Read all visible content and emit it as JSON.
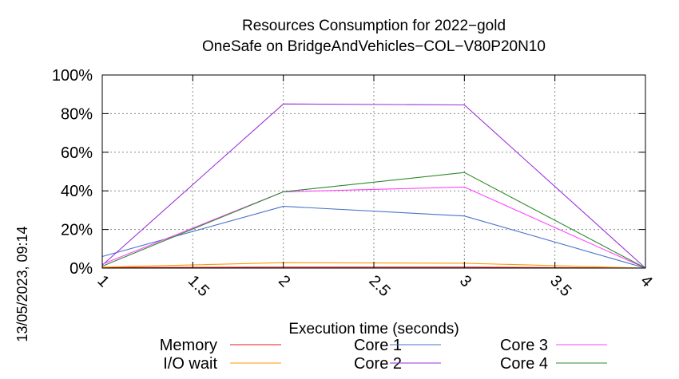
{
  "chart_data": {
    "type": "line",
    "title": "Resources Consumption for 2022−gold",
    "subtitle": "OneSafe on BridgeAndVehicles−COL−V80P20N10",
    "xlabel": "Execution time (seconds)",
    "ylabel": "",
    "xlim": [
      1,
      4
    ],
    "ylim": [
      0,
      100
    ],
    "x_ticks": [
      "1",
      "1.5",
      "2",
      "2.5",
      "3",
      "3.5",
      "4"
    ],
    "y_ticks": [
      "0%",
      "20%",
      "40%",
      "60%",
      "80%",
      "100%"
    ],
    "grid": true,
    "legend_position": "bottom",
    "series": [
      {
        "name": "Memory",
        "color": "#e41a1c",
        "x": [
          1,
          2,
          3,
          4
        ],
        "values": [
          0.3,
          0.5,
          0.5,
          0
        ]
      },
      {
        "name": "I/O wait",
        "color": "#ff9900",
        "x": [
          1,
          2,
          3,
          4
        ],
        "values": [
          0.5,
          2.8,
          2.5,
          0
        ]
      },
      {
        "name": "Core 1",
        "color": "#4a72c9",
        "x": [
          1,
          2,
          3,
          4
        ],
        "values": [
          6,
          32,
          27,
          0
        ]
      },
      {
        "name": "Core 2",
        "color": "#9b30d9",
        "x": [
          1,
          2,
          3,
          4
        ],
        "values": [
          1.5,
          85,
          84.5,
          0
        ]
      },
      {
        "name": "Core 3",
        "color": "#ff44ff",
        "x": [
          1,
          2,
          3,
          4
        ],
        "values": [
          2,
          39.5,
          42,
          0
        ]
      },
      {
        "name": "Core 4",
        "color": "#2e8b2e",
        "x": [
          1,
          2,
          3,
          4
        ],
        "values": [
          1,
          39.5,
          49.5,
          0
        ]
      }
    ]
  },
  "timestamp": "13/05/2023, 09:14"
}
